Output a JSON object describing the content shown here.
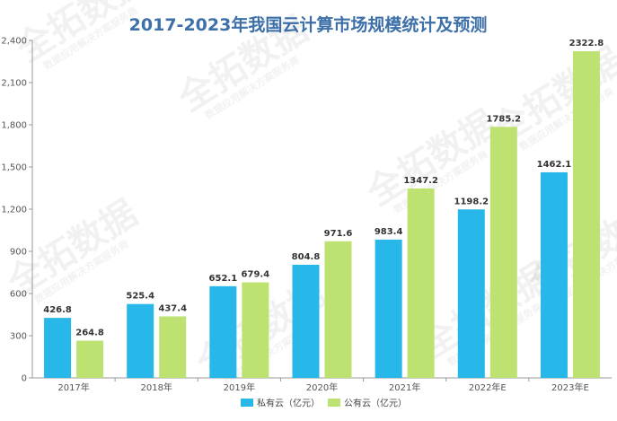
{
  "chart_data": {
    "type": "bar",
    "title": "2017-2023年我国云计算市场规模统计及预测",
    "xlabel": "",
    "ylabel": "",
    "categories": [
      "2017年",
      "2018年",
      "2019年",
      "2020年",
      "2021年",
      "2022年E",
      "2023年E"
    ],
    "series": [
      {
        "name": "私有云（亿元）",
        "color": "#27b7e8",
        "values": [
          426.8,
          525.4,
          652.1,
          804.8,
          983.4,
          1198.2,
          1462.1
        ]
      },
      {
        "name": "公有云（亿元）",
        "color": "#bde272",
        "values": [
          264.8,
          437.4,
          679.4,
          971.6,
          1347.2,
          1785.2,
          2322.8
        ]
      }
    ],
    "value_labels": [
      [
        "426.8",
        "525.4",
        "652.1",
        "804.8",
        "983.4",
        "1198.2",
        "1462.1"
      ],
      [
        "264.8",
        "437.4",
        "679.4",
        "971.6",
        "1347.2",
        "1785.2",
        "2322.8"
      ]
    ],
    "ylim": [
      0,
      2400
    ],
    "yticks": [
      0,
      300,
      600,
      900,
      1200,
      1500,
      1800,
      2100,
      2400
    ],
    "ytick_labels": [
      "0",
      "300",
      "600",
      "900",
      "1,200",
      "1,500",
      "1,800",
      "2,100",
      "2,400"
    ],
    "grid": false,
    "legend_position": "bottom"
  },
  "watermark": {
    "brand": "全拓数据",
    "slogan": "数据应用解决方案服务商"
  }
}
